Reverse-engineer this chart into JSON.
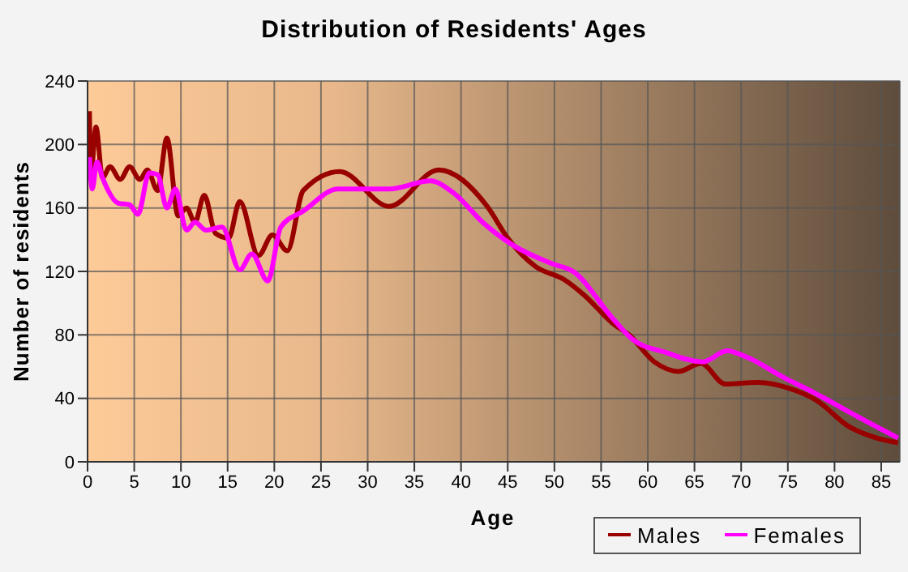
{
  "chart_data": {
    "type": "line",
    "title": "Distribution of Residents' Ages",
    "xlabel": "Age",
    "ylabel": "Number of residents",
    "xlim": [
      0,
      87
    ],
    "xticks": [
      0,
      5,
      10,
      15,
      20,
      25,
      30,
      35,
      40,
      45,
      50,
      55,
      60,
      65,
      70,
      75,
      80,
      85
    ],
    "ylim": [
      0,
      240
    ],
    "yticks": [
      0,
      40,
      80,
      120,
      160,
      200,
      240
    ],
    "grid": true,
    "legend": "bottom right",
    "marker": "none",
    "line_style": "solid",
    "series": [
      {
        "name": "Males",
        "color": "#990000",
        "x": [
          0.2,
          0.35,
          0.9,
          1.6,
          2.4,
          3.5,
          4.5,
          5.6,
          6.4,
          7.5,
          8.5,
          9.7,
          10.6,
          11.5,
          12.5,
          13.7,
          15.1,
          16.3,
          18.3,
          19.8,
          21.4,
          23.1,
          27,
          32.3,
          37.6,
          42.8,
          45,
          48,
          51,
          53.2,
          56.3,
          58,
          60.7,
          63.3,
          65.7,
          68.3,
          71.8,
          75.3,
          78,
          81.6,
          84.5,
          86.8
        ],
        "values": [
          221,
          181,
          211,
          179,
          186,
          178,
          186,
          178,
          184,
          171,
          204,
          155,
          160,
          151,
          168,
          144,
          141,
          164,
          130,
          143,
          133,
          171,
          183,
          161,
          184,
          161,
          141,
          123,
          115,
          105,
          87,
          80,
          63,
          57,
          62,
          49,
          50,
          46,
          39,
          22,
          15,
          12
        ]
      },
      {
        "name": "Females",
        "color": "#ff00ff",
        "x": [
          0.2,
          0.5,
          1,
          1.6,
          3.3,
          4.5,
          5.4,
          6.6,
          7.5,
          8.5,
          9.4,
          10.6,
          11.5,
          12.7,
          14.4,
          16.3,
          17.6,
          19.3,
          20.7,
          23.1,
          26.8,
          28.3,
          32.3,
          36.7,
          39.3,
          42.3,
          45.7,
          49.7,
          52,
          56.3,
          58.4,
          61.9,
          65.9,
          68.5,
          70.6,
          74.6,
          78,
          82.3,
          86.8
        ],
        "values": [
          192,
          172,
          189,
          179,
          163,
          162,
          156,
          182,
          181,
          160,
          172,
          146,
          151,
          146,
          148,
          121,
          131,
          114,
          148,
          158,
          172,
          172,
          172,
          177,
          169,
          151,
          136,
          125,
          120,
          90,
          77,
          69,
          63,
          70,
          66,
          53,
          43,
          29,
          15
        ]
      }
    ]
  }
}
